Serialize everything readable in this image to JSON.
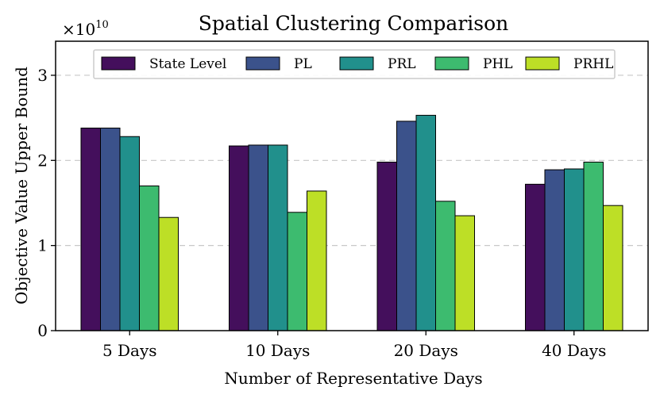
{
  "chart_data": {
    "type": "bar",
    "title": "Spatial Clustering Comparison",
    "xlabel": "Number of Representative Days",
    "ylabel": "Objective Value Upper Bound",
    "y_multiplier_label": "×10",
    "y_multiplier_exponent": "10",
    "categories": [
      "5 Days",
      "10 Days",
      "20 Days",
      "40 Days"
    ],
    "ylim": [
      0,
      3.4
    ],
    "yticks": [
      0,
      1,
      2,
      3
    ],
    "ytick_labels": [
      "0",
      "1",
      "2",
      "3"
    ],
    "grid": "y-dashed",
    "legend_position": "top",
    "series": [
      {
        "name": "State Level",
        "color": "#440f5c",
        "values": [
          2.38,
          2.17,
          1.98,
          1.72
        ]
      },
      {
        "name": "PL",
        "color": "#3b528b",
        "values": [
          2.38,
          2.18,
          2.46,
          1.89
        ]
      },
      {
        "name": "PRL",
        "color": "#21908c",
        "values": [
          2.28,
          2.18,
          2.53,
          1.9
        ]
      },
      {
        "name": "PHL",
        "color": "#3dbb6f",
        "values": [
          1.7,
          1.39,
          1.52,
          1.98
        ]
      },
      {
        "name": "PRHL",
        "color": "#bddf26",
        "values": [
          1.33,
          1.64,
          1.35,
          1.47
        ]
      }
    ]
  }
}
